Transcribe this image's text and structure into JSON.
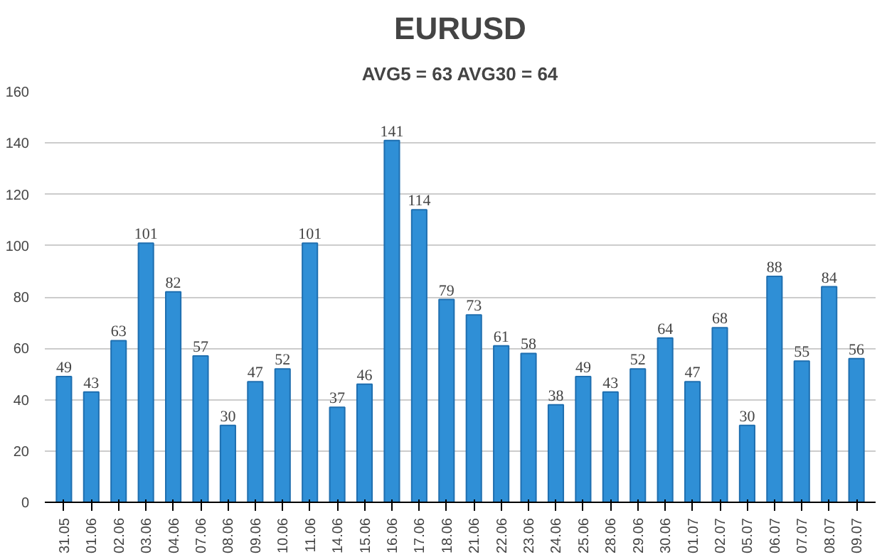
{
  "chart_data": {
    "type": "bar",
    "title": "EURUSD",
    "subtitle": "AVG5 = 63 AVG30 = 64",
    "categories": [
      "31.05",
      "01.06",
      "02.06",
      "03.06",
      "04.06",
      "07.06",
      "08.06",
      "09.06",
      "10.06",
      "11.06",
      "14.06",
      "15.06",
      "16.06",
      "17.06",
      "18.06",
      "21.06",
      "22.06",
      "23.06",
      "24.06",
      "25.06",
      "28.06",
      "29.06",
      "30.06",
      "01.07",
      "02.07",
      "05.07",
      "06.07",
      "07.07",
      "08.07",
      "09.07"
    ],
    "values": [
      49,
      43,
      63,
      101,
      82,
      57,
      30,
      47,
      52,
      101,
      37,
      46,
      141,
      114,
      79,
      73,
      61,
      58,
      38,
      49,
      43,
      52,
      64,
      47,
      68,
      30,
      88,
      55,
      84,
      56
    ],
    "color": "#2f8fd6",
    "ylim": [
      0,
      160
    ],
    "yticks": [
      0,
      20,
      40,
      60,
      80,
      100,
      120,
      140,
      160
    ],
    "grid": "y",
    "data_labels": true
  }
}
